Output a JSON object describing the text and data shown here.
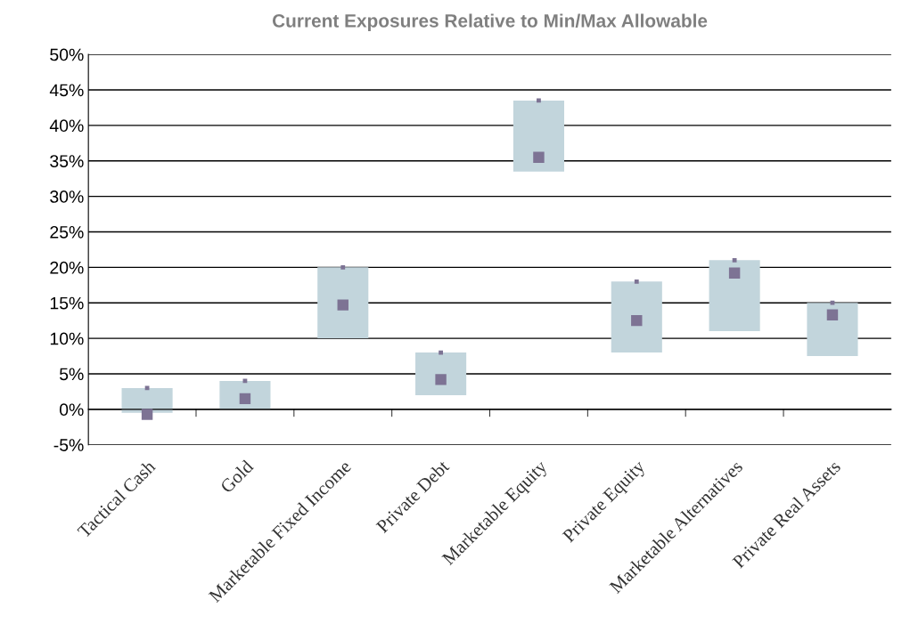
{
  "chart_data": {
    "type": "bar",
    "title": "Current Exposures Relative to Min/Max Allowable",
    "categories": [
      "Tactical Cash",
      "Gold",
      "Marketable Fixed Income",
      "Private Debt",
      "Marketable Equity",
      "Private Equity",
      "Marketable Alternatives",
      "Private Real Assets"
    ],
    "series": [
      {
        "color": "#c2d5dc",
        "base": [
          -0.5,
          0,
          10,
          2,
          33.5,
          8,
          11,
          7.5
        ],
        "values": [
          3.5,
          4,
          10,
          6,
          10,
          10,
          10,
          7.5
        ]
      },
      {
        "type": "scatter",
        "color": "#7d7394",
        "values": [
          -0.7,
          1.5,
          14.7,
          4.2,
          35.5,
          12.5,
          19.2,
          13.3
        ]
      },
      {
        "type": "scatter",
        "color": "#7d7394",
        "values": [
          3,
          4,
          20,
          8,
          43.5,
          18,
          21,
          15
        ]
      }
    ],
    "ylim": [
      -5,
      50
    ],
    "yticks": [
      {
        "value": -5,
        "label": "-5%"
      },
      {
        "value": 0,
        "label": "0%"
      },
      {
        "value": 5,
        "label": "5%"
      },
      {
        "value": 10,
        "label": "10%"
      },
      {
        "value": 15,
        "label": "15%"
      },
      {
        "value": 20,
        "label": "20%"
      },
      {
        "value": 25,
        "label": "25%"
      },
      {
        "value": 30,
        "label": "30%"
      },
      {
        "value": 35,
        "label": "35%"
      },
      {
        "value": 40,
        "label": "40%"
      },
      {
        "value": 45,
        "label": "45%"
      },
      {
        "value": 50,
        "label": "50%"
      }
    ],
    "grid": "y"
  }
}
